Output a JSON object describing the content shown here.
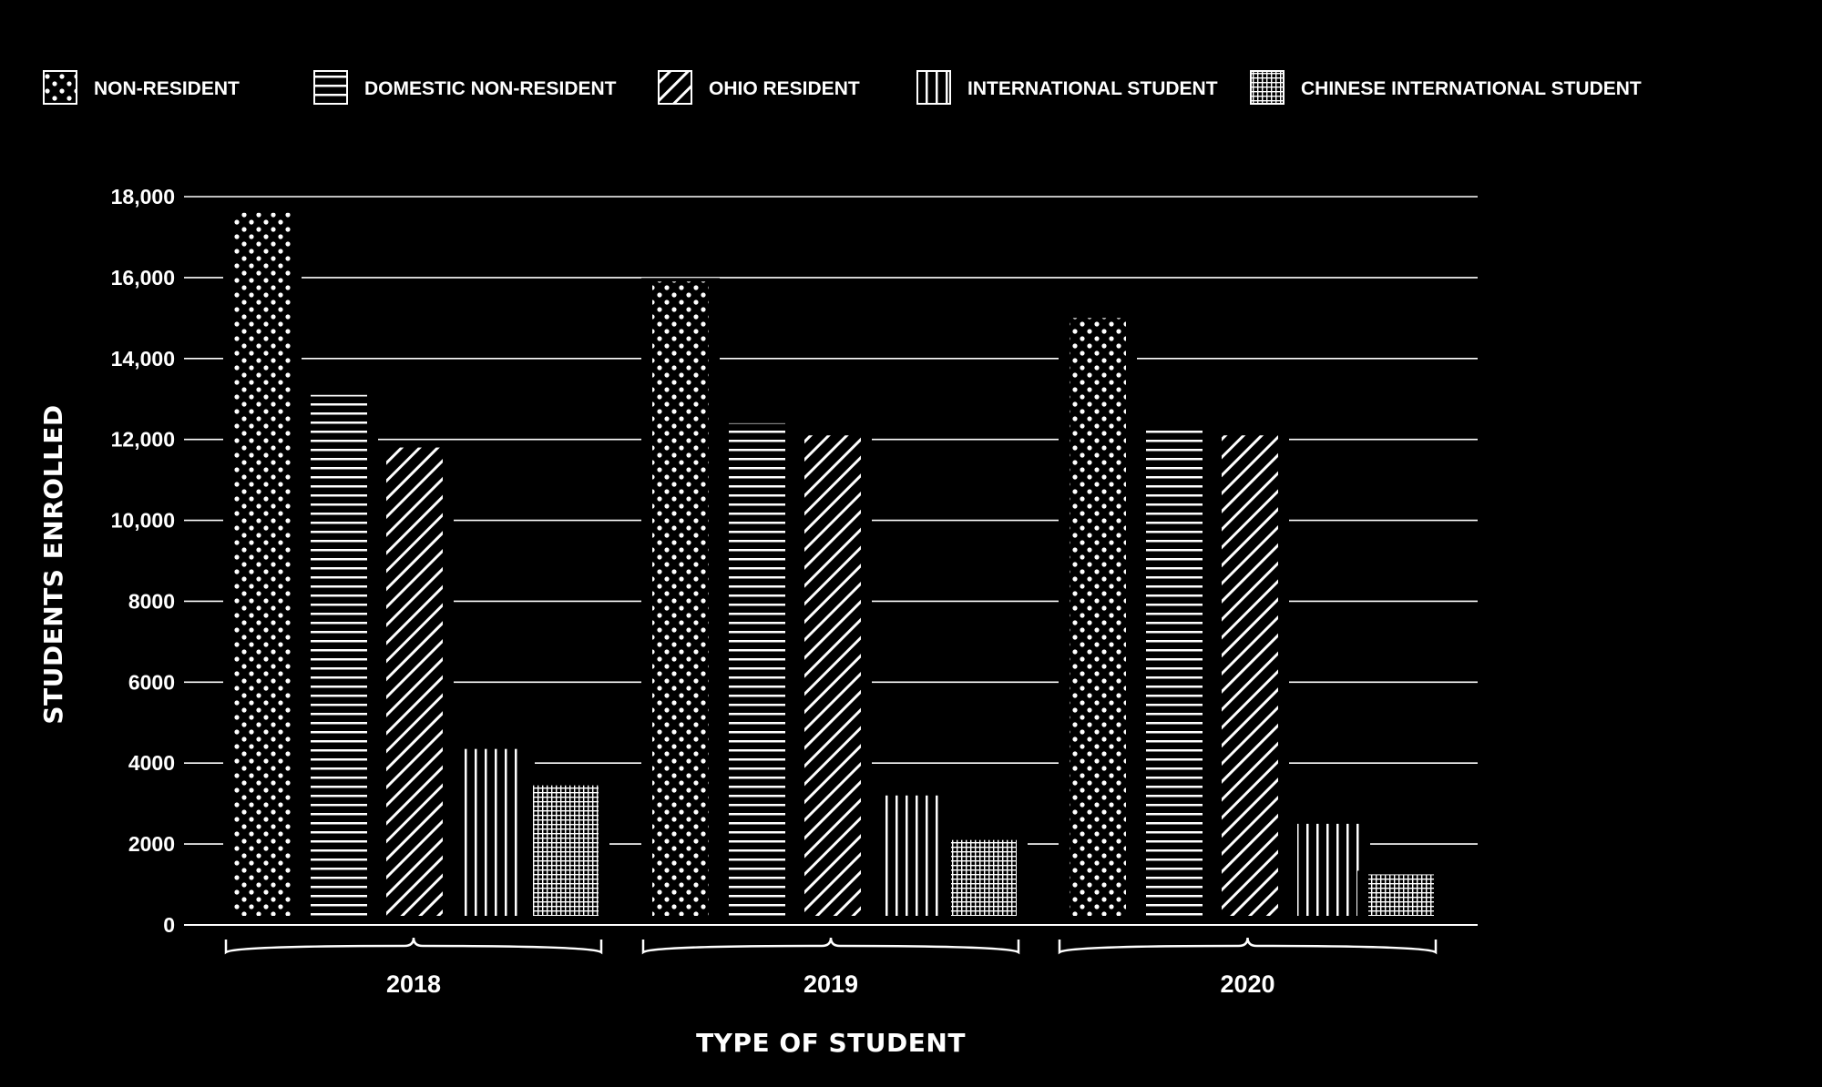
{
  "chart_data": {
    "type": "bar",
    "xlabel": "TYPE OF STUDENT",
    "ylabel": "STUDENTS ENROLLED",
    "ylim": [
      0,
      18000
    ],
    "yticks": [
      {
        "value": 0,
        "label": "0"
      },
      {
        "value": 2000,
        "label": "2000"
      },
      {
        "value": 4000,
        "label": "4000"
      },
      {
        "value": 6000,
        "label": "6000"
      },
      {
        "value": 8000,
        "label": "8000"
      },
      {
        "value": 10000,
        "label": "10,000"
      },
      {
        "value": 12000,
        "label": "12,000"
      },
      {
        "value": 14000,
        "label": "14,000"
      },
      {
        "value": 16000,
        "label": "16,000"
      },
      {
        "value": 18000,
        "label": "18,000"
      }
    ],
    "categories": [
      "2018",
      "2019",
      "2020"
    ],
    "series": [
      {
        "name": "NON-RESIDENT",
        "pattern": "dots",
        "values": [
          17600,
          15900,
          15000
        ]
      },
      {
        "name": "DOMESTIC NON-RESIDENT",
        "pattern": "horizontal-lines",
        "values": [
          13100,
          12400,
          12300
        ]
      },
      {
        "name": "OHIO RESIDENT",
        "pattern": "diagonal-lines",
        "values": [
          11800,
          12100,
          12100
        ]
      },
      {
        "name": "INTERNATIONAL STUDENT",
        "pattern": "vertical-lines",
        "values": [
          4350,
          3200,
          2500
        ]
      },
      {
        "name": "CHINESE INTERNATIONAL STUDENT",
        "pattern": "grid",
        "values": [
          3450,
          2100,
          1250
        ]
      }
    ],
    "grid": true,
    "legend_position": "top",
    "colors": {
      "background": "#000000",
      "foreground": "#ffffff"
    }
  }
}
